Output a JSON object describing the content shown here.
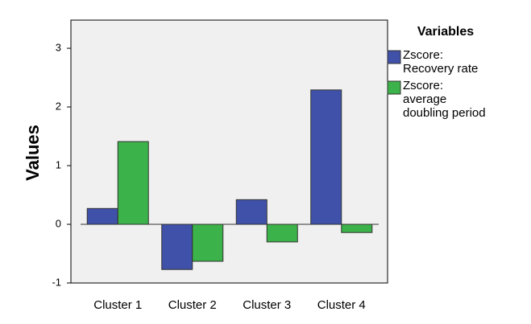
{
  "chart_data": {
    "type": "bar",
    "y_label": "Values",
    "legend_title": "Variables",
    "categories": [
      "Cluster 1",
      "Cluster 2",
      "Cluster 3",
      "Cluster 4"
    ],
    "series": [
      {
        "name": "Zscore:\nRecovery rate",
        "color": "#3f51a8",
        "values": [
          0.27,
          -0.77,
          0.42,
          2.29
        ]
      },
      {
        "name": "Zscore:\naverage\ndoubling period",
        "color": "#3cb24a",
        "values": [
          1.41,
          -0.63,
          -0.3,
          -0.14
        ]
      }
    ],
    "ylim": [
      -1,
      3.48
    ],
    "yticks": [
      -1,
      0,
      1,
      2,
      3
    ],
    "legend": "right"
  }
}
